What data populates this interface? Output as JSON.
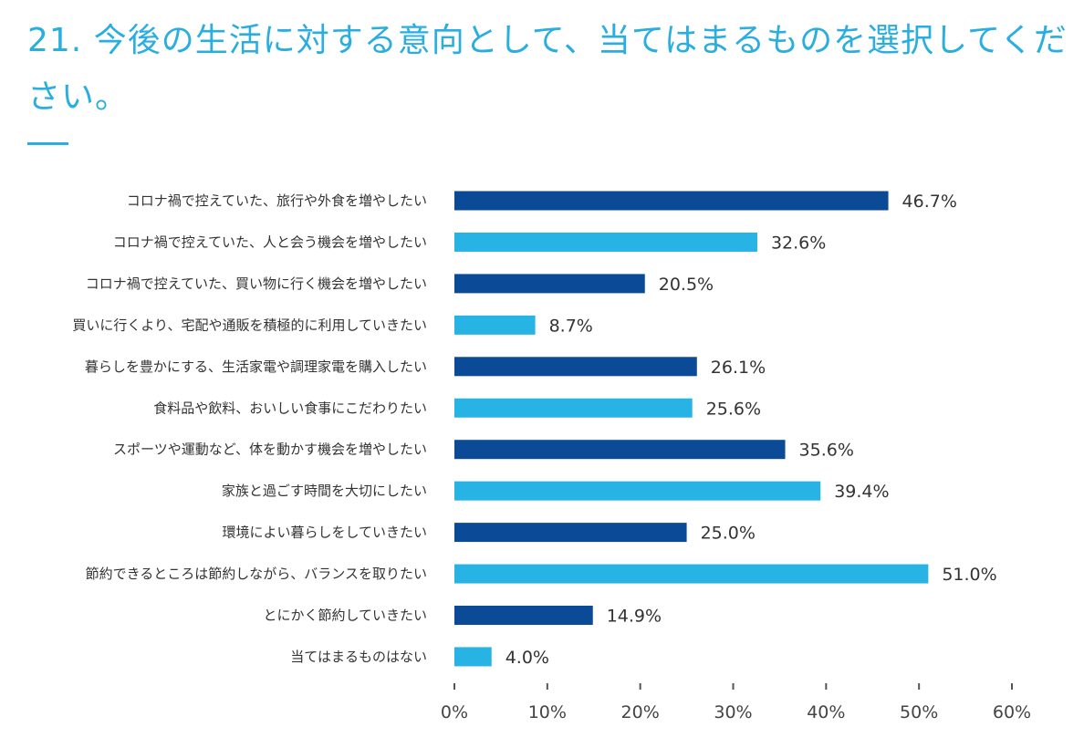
{
  "title": "21. 今後の生活に対する意向として、当てはまるものを選択してください。",
  "colors": {
    "title": "#2aaee0",
    "dark": "#0a4a97",
    "light": "#27b3e3"
  },
  "chart_data": {
    "type": "bar",
    "orientation": "horizontal",
    "categories": [
      "コロナ禍で控えていた、旅行や外食を増やしたい",
      "コロナ禍で控えていた、人と会う機会を増やしたい",
      "コロナ禍で控えていた、買い物に行く機会を増やしたい",
      "買いに行くより、宅配や通販を積極的に利用していきたい",
      "暮らしを豊かにする、生活家電や調理家電を購入したい",
      "食料品や飲料、おいしい食事にこだわりたい",
      "スポーツや運動など、体を動かす機会を増やしたい",
      "家族と過ごす時間を大切にしたい",
      "環境によい暮らしをしていきたい",
      "節約できるところは節約しながら、バランスを取りたい",
      "とにかく節約していきたい",
      "当てはまるものはない"
    ],
    "values": [
      46.7,
      32.6,
      20.5,
      8.7,
      26.1,
      25.6,
      35.6,
      39.4,
      25.0,
      51.0,
      14.9,
      4.0
    ],
    "value_labels": [
      "46.7%",
      "32.6%",
      "20.5%",
      "8.7%",
      "26.1%",
      "25.6%",
      "35.6%",
      "39.4%",
      "25.0%",
      "51.0%",
      "14.9%",
      "4.0%"
    ],
    "xlim": [
      0,
      60
    ],
    "xticks": [
      "0%",
      "10%",
      "20%",
      "30%",
      "40%",
      "50%",
      "60%"
    ],
    "grid": false,
    "legend": "none"
  }
}
